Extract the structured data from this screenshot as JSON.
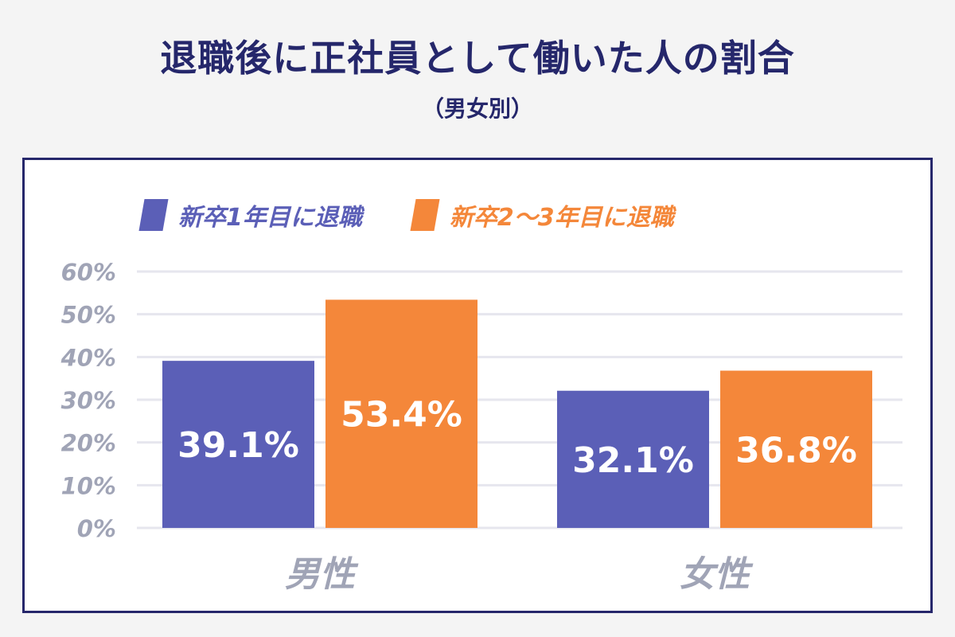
{
  "header": {
    "title": "退職後に正社員として働いた人の割合",
    "subtitle": "（男女別）"
  },
  "colors": {
    "title": "#25276b",
    "series1": "#5b5fb7",
    "series2": "#f4873a",
    "axis_text": "#a0a4b6",
    "grid": "#e6e6ee"
  },
  "chart_data": {
    "type": "bar",
    "title": "退職後に正社員として働いた人の割合",
    "subtitle": "（男女別）",
    "categories": [
      "男性",
      "女性"
    ],
    "series": [
      {
        "name": "新卒1年目に退職",
        "values": [
          39.1,
          32.1
        ],
        "labels": [
          "39.1%",
          "32.1%"
        ]
      },
      {
        "name": "新卒2〜3年目に退職",
        "values": [
          53.4,
          36.8
        ],
        "labels": [
          "53.4%",
          "36.8%"
        ]
      }
    ],
    "yticks": [
      0,
      10,
      20,
      30,
      40,
      50,
      60
    ],
    "ytick_labels": [
      "0%",
      "10%",
      "20%",
      "30%",
      "40%",
      "50%",
      "60%"
    ],
    "ylim": [
      0,
      60
    ],
    "grid": true,
    "legend_position": "top-left"
  }
}
